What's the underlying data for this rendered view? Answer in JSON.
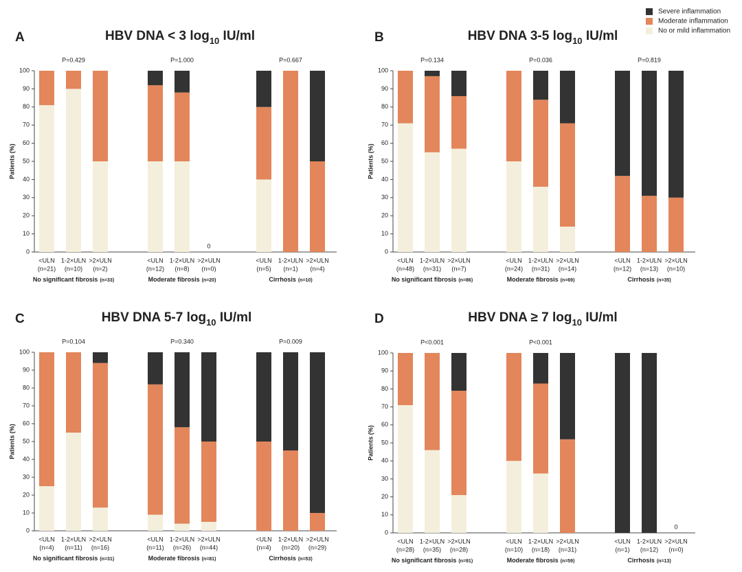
{
  "legend_title": null,
  "chart_data": [
    {
      "type": "bar",
      "stacked": true,
      "letter": "A",
      "title": [
        "HBV DNA < 3 log",
        "10",
        " IU/ml"
      ],
      "ylabel": "Patients (%)",
      "ylim": [
        0,
        100
      ],
      "yticks": [
        0,
        10,
        20,
        30,
        40,
        50,
        60,
        70,
        80,
        90,
        100
      ],
      "categories": [
        "<ULN",
        "1-2×ULN",
        ">2×ULN",
        "<ULN",
        "1-2×ULN",
        ">2×ULN",
        "<ULN",
        "1-2×ULN",
        ">2×ULN"
      ],
      "category_counts": [
        "(n=21)",
        "(n=10)",
        "(n=2)",
        "(n=12)",
        "(n=8)",
        "(n=0)",
        "(n=5)",
        "(n=1)",
        "(n=4)"
      ],
      "groups": [
        {
          "name": "No significant fibrosis",
          "n": "(n=33)",
          "p": "P=0.429"
        },
        {
          "name": "Moderate fibrosis",
          "n": "(n=20)",
          "p": "P=1.000"
        },
        {
          "name": "Cirrhosis",
          "n": "(n=10)",
          "p": "P=0.667"
        }
      ],
      "annotations": [
        {
          "text": "0",
          "category": 5
        }
      ],
      "series": [
        {
          "name": "No or mild inflammation",
          "color": "#f4efdc",
          "values": [
            81,
            90,
            50,
            50,
            50,
            0,
            40,
            0,
            0
          ]
        },
        {
          "name": "Moderate inflammation",
          "color": "#e3865b",
          "values": [
            19,
            10,
            50,
            42,
            38,
            0,
            40,
            100,
            50
          ]
        },
        {
          "name": "Severe inflammation",
          "color": "#333333",
          "values": [
            0,
            0,
            0,
            8,
            12,
            0,
            20,
            0,
            50
          ]
        }
      ]
    },
    {
      "type": "bar",
      "stacked": true,
      "letter": "B",
      "title": [
        "HBV DNA 3-5 log",
        "10",
        " IU/ml"
      ],
      "ylabel": "Patients (%)",
      "ylim": [
        0,
        100
      ],
      "yticks": [
        0,
        10,
        20,
        30,
        40,
        50,
        60,
        70,
        80,
        90,
        100
      ],
      "categories": [
        "<ULN",
        "1-2×ULN",
        ">2×ULN",
        "<ULN",
        "1-2×ULN",
        ">2×ULN",
        "<ULN",
        "1-2×ULN",
        ">2×ULN"
      ],
      "category_counts": [
        "(n=48)",
        "(n=31)",
        "(n=7)",
        "(n=24)",
        "(n=31)",
        "(n=14)",
        "(n=12)",
        "(n=13)",
        "(n=10)"
      ],
      "groups": [
        {
          "name": "No significant fibrosis",
          "n": "(n=86)",
          "p": "P=0.134"
        },
        {
          "name": "Moderate fibrosis",
          "n": "(n=69)",
          "p": "P=0.036"
        },
        {
          "name": "Cirrhosis",
          "n": "(n=35)",
          "p": "P=0.819"
        }
      ],
      "series": [
        {
          "values": [
            71,
            55,
            57,
            50,
            36,
            14,
            0,
            0,
            0
          ]
        },
        {
          "values": [
            29,
            42,
            29,
            50,
            48,
            57,
            42,
            31,
            30
          ]
        },
        {
          "values": [
            0,
            3,
            14,
            0,
            16,
            29,
            58,
            69,
            70
          ]
        }
      ]
    },
    {
      "type": "bar",
      "stacked": true,
      "letter": "C",
      "title": [
        "HBV DNA 5-7 log",
        "10",
        " IU/ml"
      ],
      "ylabel": "Patients (%)",
      "ylim": [
        0,
        100
      ],
      "yticks": [
        0,
        10,
        20,
        30,
        40,
        50,
        60,
        70,
        80,
        90,
        100
      ],
      "categories": [
        "<ULN",
        "1-2×ULN",
        ">2×ULN",
        "<ULN",
        "1-2×ULN",
        ">2×ULN",
        "<ULN",
        "1-2×ULN",
        ">2×ULN"
      ],
      "category_counts": [
        "(n=4)",
        "(n=11)",
        "(n=16)",
        "(n=11)",
        "(n=26)",
        "(n=44)",
        "(n=4)",
        "(n=20)",
        "(n=29)"
      ],
      "groups": [
        {
          "name": "No significant fibrosis",
          "n": "(n=31)",
          "p": "P=0.104"
        },
        {
          "name": "Moderate fibrosis",
          "n": "(n=81)",
          "p": "P=0.340"
        },
        {
          "name": "Cirrhosis",
          "n": "(n=53)",
          "p": "P=0.009"
        }
      ],
      "series": [
        {
          "values": [
            25,
            55,
            13,
            9,
            4,
            5,
            0,
            0,
            0
          ]
        },
        {
          "values": [
            75,
            45,
            81,
            73,
            54,
            45,
            50,
            45,
            10
          ]
        },
        {
          "values": [
            0,
            0,
            6,
            18,
            42,
            50,
            50,
            55,
            90
          ]
        }
      ]
    },
    {
      "type": "bar",
      "stacked": true,
      "letter": "D",
      "title": [
        "HBV DNA ≥ 7 log",
        "10",
        " IU/ml"
      ],
      "ylabel": "Patients (%)",
      "ylim": [
        0,
        100
      ],
      "yticks": [
        0,
        10,
        20,
        30,
        40,
        50,
        60,
        70,
        80,
        90,
        100
      ],
      "categories": [
        "<ULN",
        "1-2×ULN",
        ">2×ULN",
        "<ULN",
        "1-2×ULN",
        ">2×ULN",
        "<ULN",
        "1-2×ULN",
        ">2×ULN"
      ],
      "category_counts": [
        "(n=28)",
        "(n=35)",
        "(n=28)",
        "(n=10)",
        "(n=18)",
        "(n=31)",
        "(n=1)",
        "(n=12)",
        "(n=0)"
      ],
      "groups": [
        {
          "name": "No significant fibrosis",
          "n": "(n=91)",
          "p": "P<0.001"
        },
        {
          "name": "Moderate fibrosis",
          "n": "(n=59)",
          "p": "P<0.001"
        },
        {
          "name": "Cirrhosis",
          "n": "(n=13)"
        }
      ],
      "annotations": [
        {
          "text": "0",
          "category": 8
        }
      ],
      "series": [
        {
          "values": [
            71,
            46,
            21,
            40,
            33,
            0,
            0,
            0,
            0
          ]
        },
        {
          "values": [
            29,
            54,
            58,
            60,
            50,
            52,
            0,
            0,
            0
          ]
        },
        {
          "values": [
            0,
            0,
            21,
            0,
            17,
            48,
            100,
            100,
            0
          ]
        }
      ]
    }
  ]
}
